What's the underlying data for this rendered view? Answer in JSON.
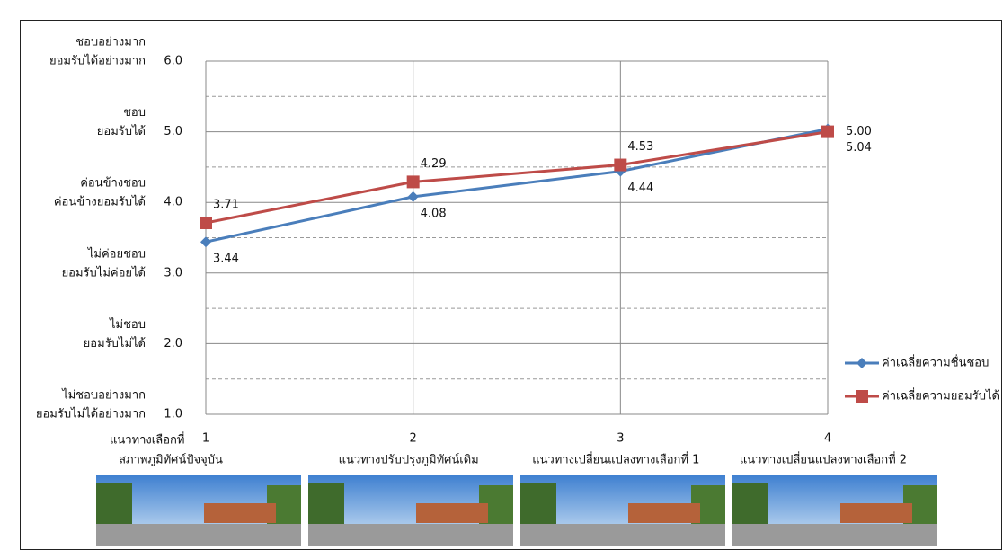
{
  "chart_data": {
    "type": "line",
    "categories": [
      "1",
      "2",
      "3",
      "4"
    ],
    "x_label_prefix": "แนวทางเลือกที่",
    "scenario_labels": [
      "สภาพภูมิทัศน์ปัจจุบัน",
      "แนวทางปรับปรุงภูมิทัศน์เดิม",
      "แนวทางเปลี่ยนแปลงทางเลือกที่ 1",
      "แนวทางเปลี่ยนแปลงทางเลือกที่ 2"
    ],
    "ylim": [
      1,
      6
    ],
    "yticks": [
      {
        "value": 1,
        "label": "1.0"
      },
      {
        "value": 2,
        "label": "2.0"
      },
      {
        "value": 3,
        "label": "3.0"
      },
      {
        "value": 4,
        "label": "4.0"
      },
      {
        "value": 5,
        "label": "5.0"
      },
      {
        "value": 6,
        "label": "6.0"
      }
    ],
    "minor_yticks": [
      1.5,
      2.5,
      3.5,
      4.5,
      5.5
    ],
    "ylevel_labels": [
      [
        "ไม่ชอบอย่างมาก",
        "ยอมรับไม่ได้อย่างมาก"
      ],
      [
        "ไม่ชอบ",
        "ยอมรับไม่ได้"
      ],
      [
        "ไม่ค่อยชอบ",
        "ยอมรับไม่ค่อยได้"
      ],
      [
        "ค่อนข้างชอบ",
        "ค่อนข้างยอมรับได้"
      ],
      [
        "ชอบ",
        "ยอมรับได้"
      ],
      [
        "ชอบอย่างมาก",
        "ยอมรับได้อย่างมาก"
      ]
    ],
    "grid": true,
    "legend": "right",
    "series": [
      {
        "name": "ค่าเฉลี่ยความชื่นชอบ",
        "color": "#4a7ebb",
        "marker": "diamond",
        "values": [
          3.44,
          4.08,
          4.44,
          5.04
        ],
        "value_labels": [
          "3.44",
          "4.08",
          "4.44",
          "5.04"
        ]
      },
      {
        "name": "ค่าเฉลี่ยความยอมรับได้",
        "color": "#be4b48",
        "marker": "square",
        "values": [
          3.71,
          4.29,
          4.53,
          5.0
        ],
        "value_labels": [
          "3.71",
          "4.29",
          "4.53",
          "5.00"
        ]
      }
    ]
  }
}
